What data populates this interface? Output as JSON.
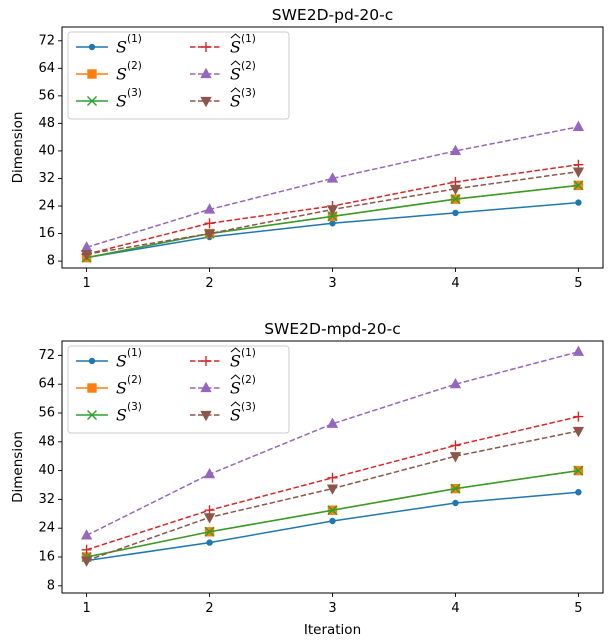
{
  "chart_data": [
    {
      "type": "line",
      "title": "SWE2D-pd-20-c",
      "xlabel": "",
      "ylabel": "Dimension",
      "x": [
        1,
        2,
        3,
        4,
        5
      ],
      "xticks": [
        "1",
        "2",
        "3",
        "4",
        "5"
      ],
      "yticks": [
        "8",
        "16",
        "24",
        "32",
        "40",
        "48",
        "56",
        "64",
        "72"
      ],
      "ylim": [
        6,
        76
      ],
      "grid": false,
      "legend_position": "top-left",
      "series": [
        {
          "name": "S(1)",
          "color": "#1f77b4",
          "marker": "circle",
          "dashed": false,
          "values": [
            9,
            15,
            19,
            22,
            25
          ]
        },
        {
          "name": "S(2)",
          "color": "#ff7f0e",
          "marker": "square",
          "dashed": false,
          "values": [
            9,
            16,
            21,
            26,
            30
          ]
        },
        {
          "name": "S(3)",
          "color": "#2ca02c",
          "marker": "x",
          "dashed": false,
          "values": [
            9,
            16,
            21,
            26,
            30
          ]
        },
        {
          "name": "Ŝ(1)",
          "color": "#d62728",
          "marker": "plus",
          "dashed": true,
          "values": [
            10,
            19,
            24,
            31,
            36
          ]
        },
        {
          "name": "Ŝ(2)",
          "color": "#9467bd",
          "marker": "triangle-up",
          "dashed": true,
          "values": [
            12,
            23,
            32,
            40,
            47
          ]
        },
        {
          "name": "Ŝ(3)",
          "color": "#8c564b",
          "marker": "triangle-down",
          "dashed": true,
          "values": [
            10,
            16,
            23,
            29,
            34
          ]
        }
      ]
    },
    {
      "type": "line",
      "title": "SWE2D-mpd-20-c",
      "xlabel": "Iteration",
      "ylabel": "Dimension",
      "x": [
        1,
        2,
        3,
        4,
        5
      ],
      "xticks": [
        "1",
        "2",
        "3",
        "4",
        "5"
      ],
      "yticks": [
        "8",
        "16",
        "24",
        "32",
        "40",
        "48",
        "56",
        "64",
        "72"
      ],
      "ylim": [
        6,
        76
      ],
      "grid": false,
      "legend_position": "top-left",
      "series": [
        {
          "name": "S(1)",
          "color": "#1f77b4",
          "marker": "circle",
          "dashed": false,
          "values": [
            15,
            20,
            26,
            31,
            34
          ]
        },
        {
          "name": "S(2)",
          "color": "#ff7f0e",
          "marker": "square",
          "dashed": false,
          "values": [
            16,
            23,
            29,
            35,
            40
          ]
        },
        {
          "name": "S(3)",
          "color": "#2ca02c",
          "marker": "x",
          "dashed": false,
          "values": [
            16,
            23,
            29,
            35,
            40
          ]
        },
        {
          "name": "Ŝ(1)",
          "color": "#d62728",
          "marker": "plus",
          "dashed": true,
          "values": [
            18,
            29,
            38,
            47,
            55
          ]
        },
        {
          "name": "Ŝ(2)",
          "color": "#9467bd",
          "marker": "triangle-up",
          "dashed": true,
          "values": [
            22,
            39,
            53,
            64,
            73
          ]
        },
        {
          "name": "Ŝ(3)",
          "color": "#8c564b",
          "marker": "triangle-down",
          "dashed": true,
          "values": [
            15,
            27,
            35,
            44,
            51
          ]
        }
      ]
    }
  ]
}
